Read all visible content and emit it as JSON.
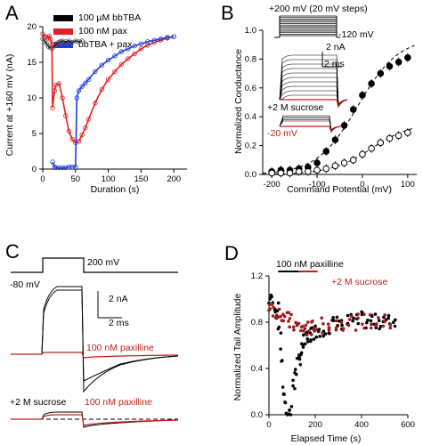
{
  "panels": {
    "A": {
      "label": "A"
    },
    "B": {
      "label": "B"
    },
    "C": {
      "label": "C"
    },
    "D": {
      "label": "D"
    }
  },
  "chart_data": [
    {
      "panel": "A",
      "type": "scatter",
      "xlabel": "Duration (s)",
      "ylabel": "Current at +160 mV (nA)",
      "xlim": [
        0,
        220
      ],
      "ylim": [
        0,
        20
      ],
      "xticks": [
        "0",
        "50",
        "100",
        "150",
        "200"
      ],
      "yticks": [
        "0",
        "5",
        "10",
        "15",
        "20"
      ],
      "legend": [
        "100 µM bbTBA",
        "100 nM pax",
        "bbTBA + pax"
      ],
      "legend_colors": [
        "#000000",
        "#e02020",
        "#1f3fd6"
      ],
      "series": [
        {
          "name": "100 µM bbTBA",
          "color": "#000000",
          "x": [
            0,
            3,
            6,
            9,
            12,
            15,
            18,
            21,
            24,
            27,
            30,
            35,
            40,
            45,
            50,
            55,
            60
          ],
          "y": [
            18.3,
            18.0,
            17.6,
            17.2,
            17.0,
            17.0,
            17.3,
            17.6,
            17.8,
            17.9,
            18.0,
            17.9,
            18.0,
            17.8,
            18.0,
            17.9,
            18.0
          ]
        },
        {
          "name": "100 nM pax",
          "color": "#e02020",
          "x": [
            0,
            5,
            8,
            10,
            12,
            14,
            15,
            18,
            20,
            25,
            30,
            35,
            40,
            45,
            50,
            55,
            60,
            65,
            70,
            80,
            90,
            100,
            110,
            120,
            130,
            140,
            150,
            160,
            170,
            180,
            190,
            200
          ],
          "y": [
            19.0,
            18.6,
            18.4,
            18.7,
            18.2,
            17.5,
            8.6,
            11.0,
            11.8,
            12.0,
            10.0,
            7.5,
            5.3,
            4.2,
            3.7,
            3.9,
            4.8,
            5.8,
            7.0,
            9.3,
            11.2,
            12.6,
            13.7,
            14.7,
            15.5,
            16.2,
            16.9,
            17.4,
            17.8,
            18.1,
            18.4,
            18.6
          ]
        },
        {
          "name": "bbTBA + pax",
          "color": "#1f3fd6",
          "x": [
            15,
            18,
            20,
            25,
            30,
            35,
            40,
            45,
            50,
            52,
            55,
            60,
            65,
            70,
            80,
            90,
            100,
            110,
            120,
            130,
            140,
            150,
            160,
            170,
            180,
            190,
            200
          ],
          "y": [
            1.0,
            0.3,
            0.2,
            0.2,
            0.2,
            0.2,
            0.3,
            0.3,
            0.3,
            10.0,
            11.0,
            11.6,
            12.1,
            12.6,
            13.7,
            14.6,
            15.3,
            15.9,
            16.5,
            16.9,
            17.3,
            17.6,
            17.9,
            18.1,
            18.3,
            18.5,
            18.6
          ]
        }
      ]
    },
    {
      "panel": "B",
      "type": "scatter",
      "xlabel": "Command Potential (mV)",
      "ylabel": "Normalized Conductance",
      "xlim": [
        -220,
        120
      ],
      "ylim": [
        0,
        1.0
      ],
      "xticks": [
        "-200",
        "-100",
        "0",
        "100"
      ],
      "yticks": [
        "0.0",
        "0.2",
        "0.4",
        "0.6",
        "0.8",
        "1.0"
      ],
      "annotations": [
        "+200 mV (20 mV steps)",
        "-120 mV",
        "2 nA",
        "2 ms",
        "+2 M sucrose",
        "-20 mV"
      ],
      "series": [
        {
          "name": "",
          "marker": "filled",
          "x": [
            -200,
            -180,
            -160,
            -140,
            -120,
            -100,
            -80,
            -60,
            -40,
            -20,
            0,
            20,
            40,
            60,
            80,
            100
          ],
          "y": [
            0.02,
            0.03,
            0.03,
            0.04,
            0.05,
            0.08,
            0.16,
            0.24,
            0.34,
            0.45,
            0.55,
            0.63,
            0.7,
            0.75,
            0.78,
            0.81
          ]
        },
        {
          "name": "",
          "marker": "open",
          "x": [
            -200,
            -180,
            -160,
            -140,
            -120,
            -100,
            -80,
            -60,
            -40,
            -20,
            0,
            20,
            40,
            60,
            80,
            100
          ],
          "y": [
            0.01,
            0.01,
            0.01,
            0.02,
            0.02,
            0.03,
            0.04,
            0.06,
            0.08,
            0.1,
            0.14,
            0.18,
            0.22,
            0.25,
            0.27,
            0.29
          ]
        }
      ]
    },
    {
      "panel": "C",
      "type": "line",
      "annotations": [
        "200 mV",
        "-80 mV",
        "2 nA",
        "2 ms",
        "100 nM paxilline",
        "+2 M sucrose",
        "100 nM paxilline"
      ],
      "annotation_colors": [
        "#000000",
        "#000000",
        "#000000",
        "#000000",
        "#c0201a",
        "#000000",
        "#c0201a"
      ]
    },
    {
      "panel": "D",
      "type": "scatter",
      "xlabel": "Elapsed Time (s)",
      "ylabel": "Normalized Tail Amplitude",
      "xlim": [
        0,
        600
      ],
      "ylim": [
        0,
        1.2
      ],
      "xticks": [
        "0",
        "200",
        "400",
        "600"
      ],
      "yticks": [
        "0.0",
        "0.4",
        "0.8",
        "1.2"
      ],
      "annotations": [
        "100 nM paxilline",
        "+2 M sucrose"
      ],
      "series": [
        {
          "name": "",
          "color": "#000000",
          "x": [
            5,
            15,
            25,
            35,
            45,
            55,
            65,
            75,
            85,
            95,
            105,
            115,
            125,
            135,
            145,
            155,
            165,
            175,
            185,
            200,
            220,
            240,
            260,
            280,
            300,
            320,
            340,
            360,
            380,
            400,
            420,
            440,
            460,
            480,
            500,
            520,
            540
          ],
          "y": [
            1.0,
            0.98,
            0.95,
            0.9,
            0.75,
            0.5,
            0.2,
            0.05,
            0.02,
            0.05,
            0.25,
            0.4,
            0.45,
            0.5,
            0.55,
            0.62,
            0.66,
            0.68,
            0.7,
            0.72,
            0.74,
            0.75,
            0.76,
            0.78,
            0.79,
            0.8,
            0.8,
            0.81,
            0.8,
            0.82,
            0.81,
            0.82,
            0.8,
            0.81,
            0.82,
            0.8,
            0.81
          ]
        },
        {
          "name": "+2 M sucrose",
          "color": "#9b1c1c",
          "x": [
            5,
            20,
            35,
            50,
            65,
            80,
            95,
            110,
            125,
            140,
            155,
            170,
            185,
            200,
            230,
            260,
            290,
            320,
            350,
            380,
            410,
            440,
            470,
            500,
            530
          ],
          "y": [
            0.95,
            0.92,
            0.9,
            0.88,
            0.85,
            0.82,
            0.8,
            0.78,
            0.76,
            0.75,
            0.74,
            0.74,
            0.75,
            0.76,
            0.77,
            0.78,
            0.79,
            0.8,
            0.8,
            0.8,
            0.81,
            0.8,
            0.81,
            0.8,
            0.8
          ]
        }
      ]
    }
  ]
}
